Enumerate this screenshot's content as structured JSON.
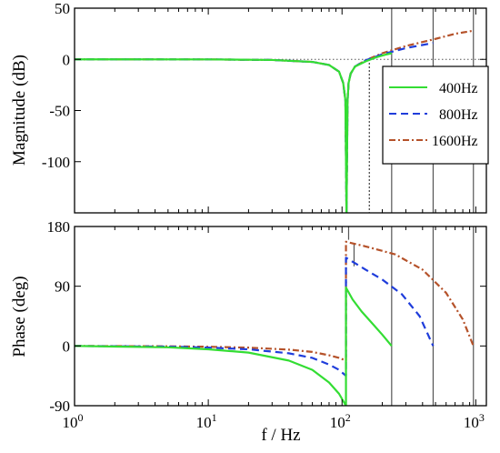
{
  "chart_data": [
    {
      "type": "line",
      "ylabel": "Magnitude (dB)",
      "xscale": "log",
      "xlim": [
        1,
        1200
      ],
      "ylim": [
        -150,
        50
      ],
      "yticks": [
        50,
        0,
        -50,
        -100
      ],
      "ytick_labels": [
        "50",
        "0",
        "-50",
        "-100"
      ],
      "reference_line": {
        "y": 0,
        "style": "dotted"
      },
      "marker_line": {
        "x": 160,
        "style": "dotted"
      },
      "grid": false,
      "legend": "right",
      "series": [
        {
          "name": "400Hz",
          "color": "#33dd33",
          "dash": "solid",
          "x": [
            1,
            10,
            30,
            60,
            80,
            95,
            102,
            106,
            108,
            110,
            112,
            116,
            125,
            150,
            180,
            210,
            235
          ],
          "y": [
            0,
            -0.05,
            -0.6,
            -2.5,
            -5.5,
            -12,
            -23,
            -40,
            -150,
            -40,
            -23,
            -14,
            -7,
            -2,
            2,
            4.5,
            6
          ]
        },
        {
          "name": "800Hz",
          "color": "#1f3ddb",
          "dash": "dashed",
          "x": [
            1,
            10,
            30,
            60,
            80,
            95,
            102,
            106,
            108,
            110,
            112,
            116,
            125,
            150,
            200,
            300,
            480
          ],
          "y": [
            0,
            -0.05,
            -0.6,
            -2.5,
            -5.5,
            -12,
            -23,
            -40,
            -150,
            -40,
            -23,
            -14,
            -7,
            -1,
            5,
            11,
            16
          ]
        },
        {
          "name": "1600Hz",
          "color": "#b5522a",
          "dash": "dashdot",
          "x": [
            1,
            10,
            30,
            60,
            80,
            95,
            102,
            106,
            108,
            110,
            112,
            116,
            125,
            150,
            200,
            300,
            500,
            700,
            960
          ],
          "y": [
            0,
            -0.05,
            -0.6,
            -2.5,
            -5.5,
            -12,
            -23,
            -40,
            -150,
            -40,
            -23,
            -14,
            -7,
            -1,
            6,
            13,
            20,
            25,
            28
          ]
        }
      ]
    },
    {
      "type": "line",
      "xlabel": "f / Hz",
      "ylabel": "Phase (deg)",
      "xscale": "log",
      "xlim": [
        1,
        1200
      ],
      "ylim": [
        -90,
        180
      ],
      "xticks": [
        1,
        10,
        100,
        1000
      ],
      "xtick_labels": [
        [
          "10",
          "0"
        ],
        [
          "10",
          "1"
        ],
        [
          "10",
          "2"
        ],
        [
          "10",
          "3"
        ]
      ],
      "yticks": [
        180,
        90,
        0,
        -90
      ],
      "ytick_labels": [
        "180",
        "90",
        "0",
        "-90"
      ],
      "reference_line": {
        "y": 180,
        "style": "dotted"
      },
      "vertical_lines_x": [
        235,
        480,
        960
      ],
      "grid": false,
      "series": [
        {
          "name": "400Hz",
          "color": "#33dd33",
          "dash": "solid",
          "x": [
            1,
            5,
            10,
            20,
            40,
            60,
            80,
            95,
            107,
            107.01,
            120,
            140,
            170,
            200,
            235
          ],
          "y": [
            0,
            -2,
            -5,
            -10,
            -22,
            -36,
            -55,
            -72,
            -90,
            88,
            70,
            52,
            33,
            17,
            0
          ]
        },
        {
          "name": "800Hz",
          "color": "#1f3ddb",
          "dash": "dashed",
          "x": [
            1,
            5,
            10,
            20,
            40,
            60,
            80,
            95,
            107,
            107.01,
            150,
            200,
            280,
            380,
            480
          ],
          "y": [
            0,
            -1,
            -2.5,
            -5,
            -11,
            -18,
            -28,
            -36,
            -45,
            133,
            115,
            100,
            78,
            45,
            0
          ]
        },
        {
          "name": "1600Hz",
          "color": "#b5522a",
          "dash": "dashdot",
          "x": [
            1,
            5,
            10,
            20,
            40,
            60,
            80,
            95,
            107,
            107.01,
            150,
            250,
            400,
            600,
            800,
            960
          ],
          "y": [
            0,
            -0.5,
            -1.2,
            -2.5,
            -5.5,
            -9,
            -14,
            -18,
            -22,
            157,
            150,
            138,
            115,
            80,
            40,
            0
          ]
        }
      ]
    }
  ]
}
